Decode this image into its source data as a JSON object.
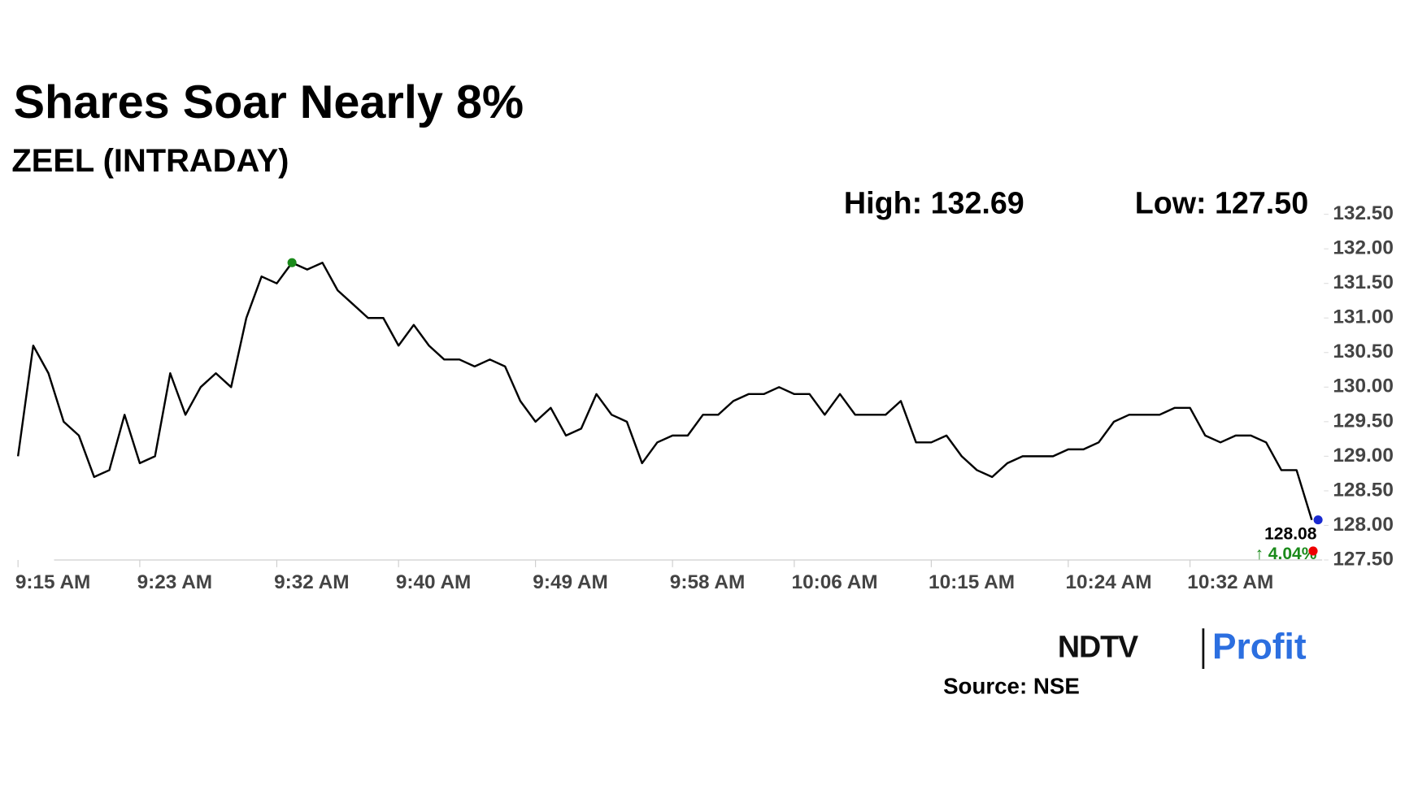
{
  "chart_data": {
    "type": "line",
    "title": "Shares Soar Nearly 8%",
    "subtitle": "ZEEL (INTRADAY)",
    "high_label": "High: 132.69",
    "low_label": "Low: 127.50",
    "last_label": "128.08",
    "change_label": "↑ 4.04%",
    "categories": [
      "9:15 AM",
      null,
      null,
      null,
      null,
      null,
      null,
      null,
      "9:23 AM",
      null,
      null,
      null,
      null,
      null,
      null,
      null,
      null,
      "9:32 AM",
      null,
      null,
      null,
      null,
      null,
      null,
      null,
      "9:40 AM",
      null,
      null,
      null,
      null,
      null,
      null,
      null,
      null,
      "9:49 AM",
      null,
      null,
      null,
      null,
      null,
      null,
      null,
      null,
      "9:58 AM",
      null,
      null,
      null,
      null,
      null,
      null,
      null,
      "10:06 AM",
      null,
      null,
      null,
      null,
      null,
      null,
      null,
      null,
      "10:15 AM",
      null,
      null,
      null,
      null,
      null,
      null,
      null,
      null,
      "10:24 AM",
      null,
      null,
      null,
      null,
      null,
      null,
      null,
      "10:32 AM",
      null,
      null,
      null,
      null,
      null,
      null,
      null,
      null
    ],
    "series": [
      {
        "color": "#000000",
        "values": [
          129.0,
          130.6,
          130.2,
          129.5,
          129.3,
          128.7,
          128.8,
          129.6,
          128.9,
          129.0,
          130.2,
          129.6,
          130.0,
          130.2,
          130.0,
          131.0,
          131.6,
          131.5,
          131.8,
          131.7,
          131.8,
          131.4,
          131.2,
          131.0,
          131.0,
          130.6,
          130.9,
          130.6,
          130.4,
          130.4,
          130.3,
          130.4,
          130.3,
          129.8,
          129.5,
          129.7,
          129.3,
          129.4,
          129.9,
          129.6,
          129.5,
          128.9,
          129.2,
          129.3,
          129.3,
          129.6,
          129.6,
          129.8,
          129.9,
          129.9,
          130.0,
          129.9,
          129.9,
          129.6,
          129.9,
          129.6,
          129.6,
          129.6,
          129.8,
          129.2,
          129.2,
          129.3,
          129.0,
          128.8,
          128.7,
          128.9,
          129.0,
          129.0,
          129.0,
          129.1,
          129.1,
          129.2,
          129.5,
          129.6,
          129.6,
          129.6,
          129.7,
          129.7,
          129.3,
          129.2,
          129.3,
          129.3,
          129.2,
          128.8,
          128.8,
          128.08
        ]
      }
    ],
    "ylim": [
      127.5,
      132.5
    ],
    "yticks": [
      {
        "value": 127.5,
        "label": "127.50"
      },
      {
        "value": 128,
        "label": "128.00"
      },
      {
        "value": 128.5,
        "label": "128.50"
      },
      {
        "value": 129,
        "label": "129.00"
      },
      {
        "value": 129.5,
        "label": "129.50"
      },
      {
        "value": 130,
        "label": "130.00"
      },
      {
        "value": 130.5,
        "label": "130.50"
      },
      {
        "value": 131,
        "label": "131.00"
      },
      {
        "value": 131.5,
        "label": "131.50"
      },
      {
        "value": 132,
        "label": "132.00"
      },
      {
        "value": 132.5,
        "label": "132.50"
      }
    ],
    "grid": false
  },
  "logo": {
    "left": "NDTV",
    "right": "Profit"
  },
  "source": "Source: NSE"
}
